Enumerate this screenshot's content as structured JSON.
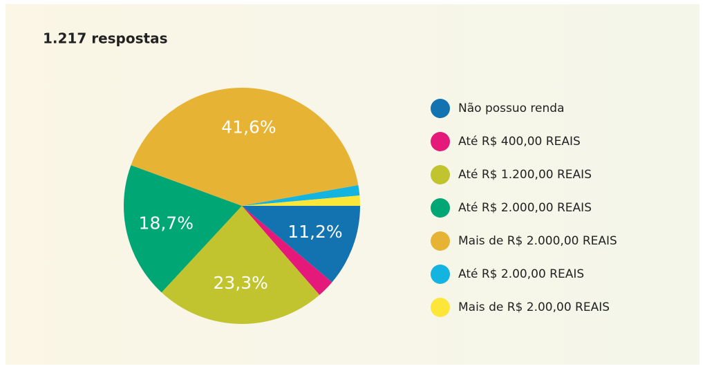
{
  "chart_data": {
    "type": "pie",
    "title": "1.217 respostas",
    "categories": [
      "Não possuo renda",
      "Até R$ 400,00 REAIS",
      "Até R$ 1.200,00 REAIS",
      "Até R$ 2.000,00 REAIS",
      "Mais de R$ 2.000,00 REAIS",
      "Até R$ 2.00,00 REAIS",
      "Mais de R$ 2.00,00 REAIS"
    ],
    "values": [
      11.2,
      2.4,
      23.3,
      18.7,
      41.6,
      1.4,
      1.4
    ],
    "value_labels": [
      "11,2%",
      null,
      "23,3%",
      "18,7%",
      "41,6%",
      null,
      null
    ],
    "colors": [
      "#1273b0",
      "#e5197a",
      "#c1c42f",
      "#00a775",
      "#e6b334",
      "#14b3e0",
      "#fde63a"
    ],
    "legend": "right"
  }
}
